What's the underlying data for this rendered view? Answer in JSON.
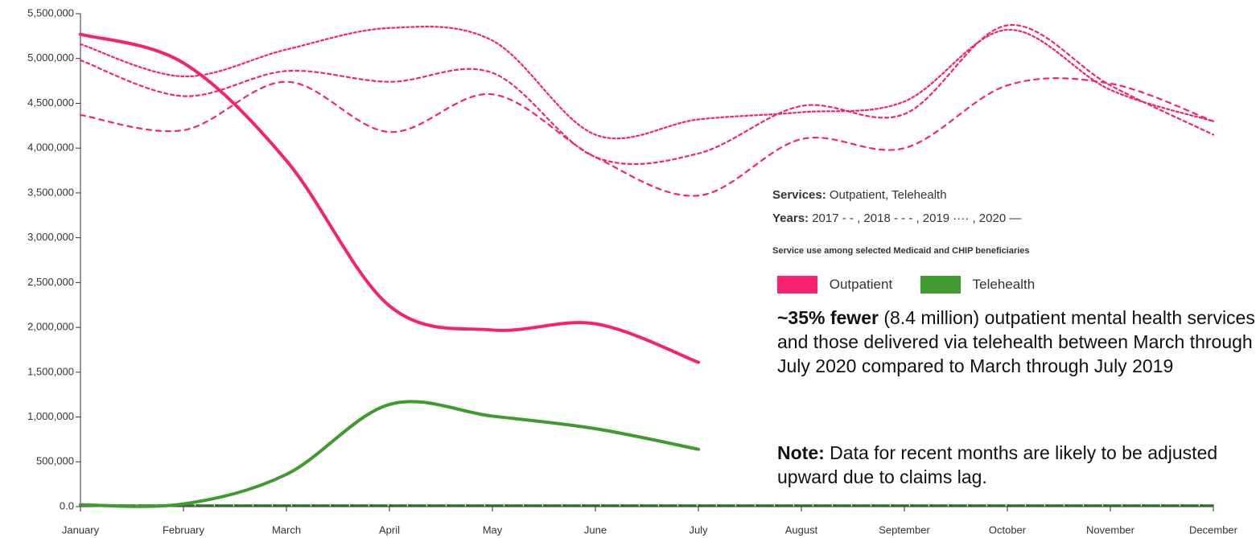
{
  "chart_data": {
    "type": "line",
    "categories": [
      "January",
      "February",
      "March",
      "April",
      "May",
      "June",
      "July",
      "August",
      "September",
      "October",
      "November",
      "December"
    ],
    "ylim": [
      0,
      5500000
    ],
    "yticks": [
      {
        "value": 0,
        "label": "0.0"
      },
      {
        "value": 500000,
        "label": "500,000"
      },
      {
        "value": 1000000,
        "label": "1,000,000"
      },
      {
        "value": 1500000,
        "label": "1,500,000"
      },
      {
        "value": 2000000,
        "label": "2,000,000"
      },
      {
        "value": 2500000,
        "label": "2,500,000"
      },
      {
        "value": 3000000,
        "label": "3,000,000"
      },
      {
        "value": 3500000,
        "label": "3,500,000"
      },
      {
        "value": 4000000,
        "label": "4,000,000"
      },
      {
        "value": 4500000,
        "label": "4,500,000"
      },
      {
        "value": 5000000,
        "label": "5,000,000"
      },
      {
        "value": 5500000,
        "label": "5,500,000"
      }
    ],
    "series": [
      {
        "name": "Outpatient",
        "year": "2017",
        "dash": "dash",
        "color": "#f7216f",
        "values": [
          4370000,
          4200000,
          4740000,
          4180000,
          4600000,
          3900000,
          3470000,
          4100000,
          4000000,
          4700000,
          4720000,
          4300000
        ]
      },
      {
        "name": "Outpatient",
        "year": "2018",
        "dash": "dash3",
        "color": "#f7216f",
        "values": [
          4980000,
          4580000,
          4860000,
          4740000,
          4840000,
          3900000,
          3940000,
          4470000,
          4380000,
          5370000,
          4700000,
          4150000
        ]
      },
      {
        "name": "Outpatient",
        "year": "2019",
        "dash": "dot",
        "color": "#f7216f",
        "values": [
          5160000,
          4800000,
          5100000,
          5340000,
          5200000,
          4150000,
          4320000,
          4400000,
          4520000,
          5320000,
          4650000,
          4300000
        ]
      },
      {
        "name": "Outpatient",
        "year": "2020",
        "dash": "solid",
        "color": "#f7216f",
        "values": [
          5270000,
          4950000,
          3860000,
          2240000,
          1970000,
          2040000,
          1610000,
          null,
          null,
          null,
          null,
          null
        ]
      },
      {
        "name": "Telehealth",
        "year": "2017",
        "dash": "dash",
        "color": "#2f7a24",
        "values": [
          15000,
          15000,
          15000,
          15000,
          15000,
          15000,
          15000,
          15000,
          15000,
          15000,
          15000,
          15000
        ]
      },
      {
        "name": "Telehealth",
        "year": "2018",
        "dash": "dash3",
        "color": "#2f7a24",
        "values": [
          15000,
          15000,
          15000,
          15000,
          15000,
          15000,
          15000,
          15000,
          15000,
          15000,
          15000,
          15000
        ]
      },
      {
        "name": "Telehealth",
        "year": "2019",
        "dash": "dot",
        "color": "#2f7a24",
        "values": [
          15000,
          15000,
          15000,
          15000,
          15000,
          15000,
          15000,
          15000,
          15000,
          15000,
          15000,
          15000
        ]
      },
      {
        "name": "Telehealth",
        "year": "2020",
        "dash": "solid",
        "color": "#3f9a2f",
        "values": [
          20000,
          30000,
          360000,
          1140000,
          1010000,
          870000,
          640000,
          null,
          null,
          null,
          null,
          null
        ]
      }
    ],
    "legend": {
      "services_label": "Services:",
      "services": "Outpatient, Telehealth",
      "years_label": "Years:",
      "years_text": "2017 - -  , 2018 - - - , 2019 ···· , 2020 —"
    },
    "subtitle": "Service use among selected Medicaid and CHIP beneficiaries",
    "annotation": {
      "bold": "~35% fewer",
      "text": "(8.4 million) outpatient mental health services and those delivered via telehealth between March through July 2020 compared to March through July 2019"
    },
    "note": {
      "bold": "Note:",
      "text": "Data for recent months are likely to be adjusted upward due to claims lag."
    }
  }
}
